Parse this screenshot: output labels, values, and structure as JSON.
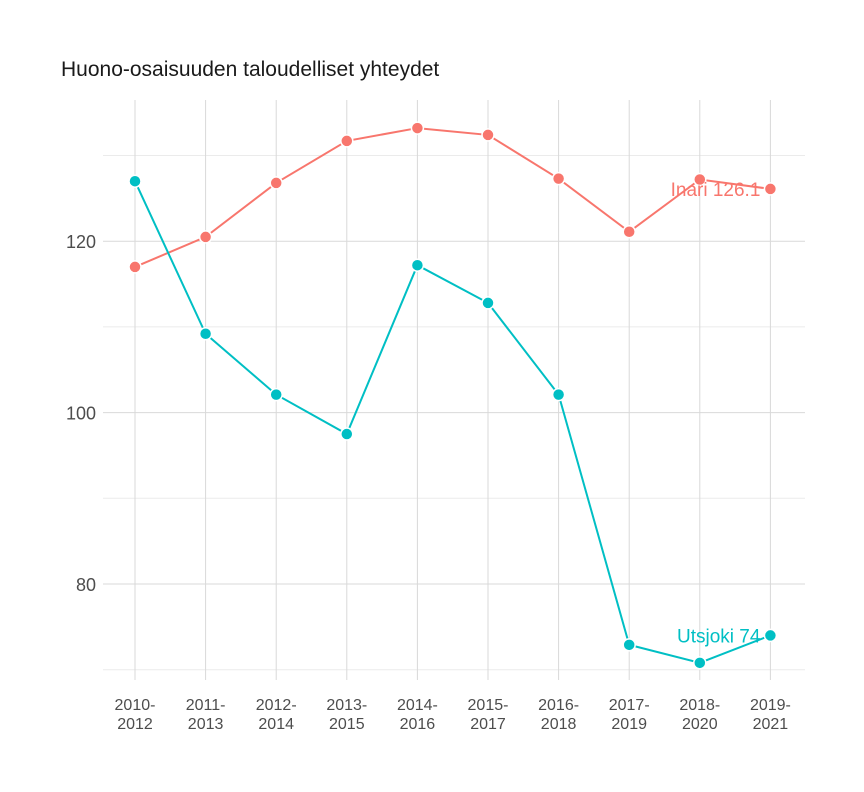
{
  "chart_data": {
    "type": "line",
    "title": "Huono-osaisuuden taloudelliset yhteydet",
    "xlabel": "",
    "ylabel": "",
    "categories": [
      "2010-2012",
      "2011-2013",
      "2012-2014",
      "2013-2015",
      "2014-2016",
      "2015-2017",
      "2016-2018",
      "2017-2019",
      "2018-2020",
      "2019-2021"
    ],
    "ylim": [
      70,
      137
    ],
    "yticks": [
      80,
      100,
      120
    ],
    "grid": true,
    "series": [
      {
        "name": "Inari",
        "color": "#F8766D",
        "values": [
          117.0,
          120.5,
          126.8,
          131.7,
          133.2,
          132.4,
          127.3,
          121.1,
          127.2,
          126.1
        ],
        "end_label": "Inari 126.1"
      },
      {
        "name": "Utsjoki",
        "color": "#00BFC4",
        "values": [
          127.0,
          109.2,
          102.1,
          97.5,
          117.2,
          112.8,
          102.1,
          72.9,
          70.8,
          74.0
        ],
        "end_label": "Utsjoki 74"
      }
    ]
  }
}
